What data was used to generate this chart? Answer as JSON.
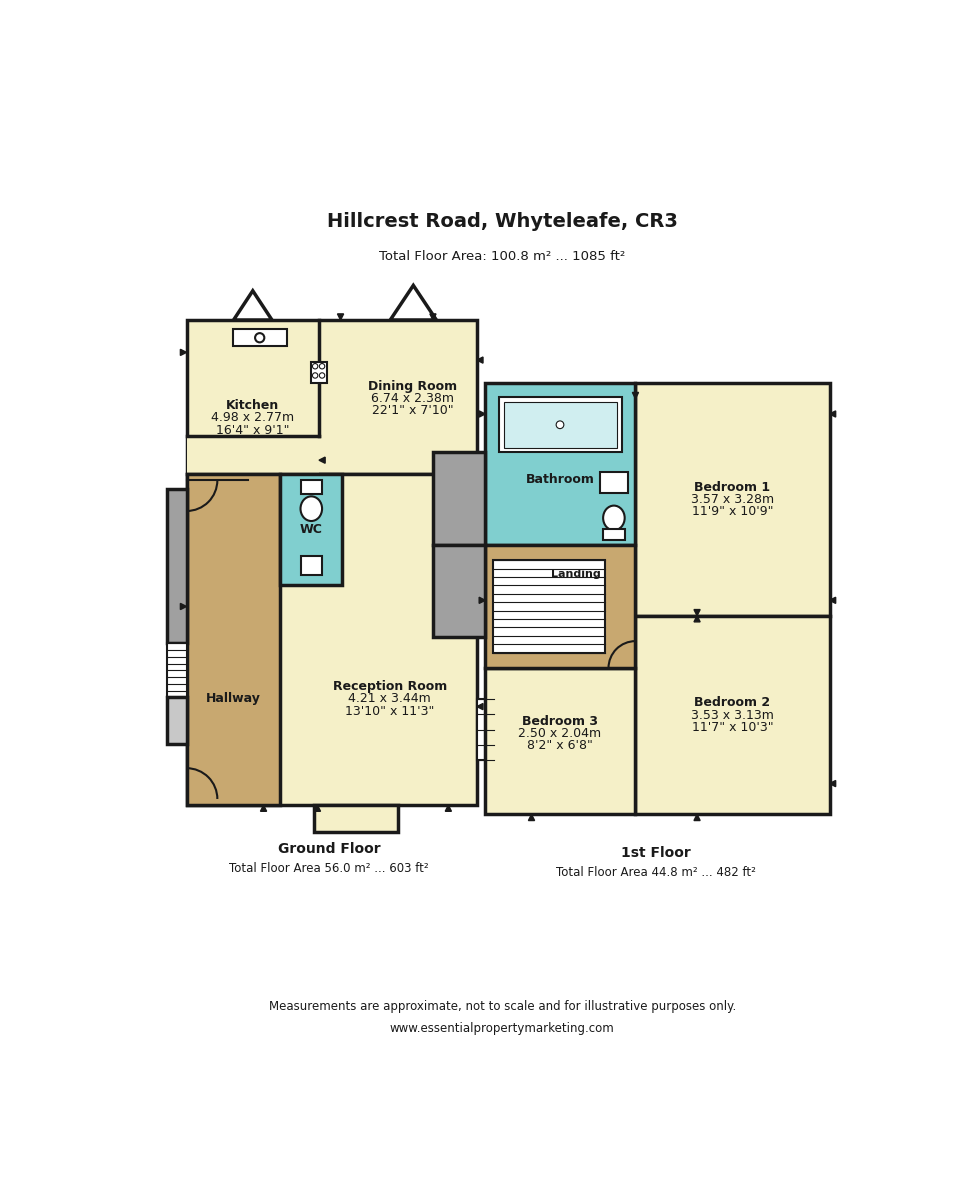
{
  "title": "Hillcrest Road, Whyteleafe, CR3",
  "total_area": "Total Floor Area: 100.8 m² ... 1085 ft²",
  "ground_floor_label": "Ground Floor",
  "ground_floor_area": "Total Floor Area 56.0 m² ... 603 ft²",
  "first_floor_label": "1st Floor",
  "first_floor_area": "Total Floor Area 44.8 m² ... 482 ft²",
  "disclaimer": "Measurements are approximate, not to scale and for illustrative purposes only.",
  "website": "www.essentialpropertymarketing.com",
  "bg_color": "#ffffff",
  "wall_color": "#1a1a1a",
  "room_yellow": "#f5f0c8",
  "room_brown": "#c8a870",
  "room_blue": "#80cfcf",
  "room_gray": "#a0a0a0",
  "room_light_gray": "#c8c8c8"
}
